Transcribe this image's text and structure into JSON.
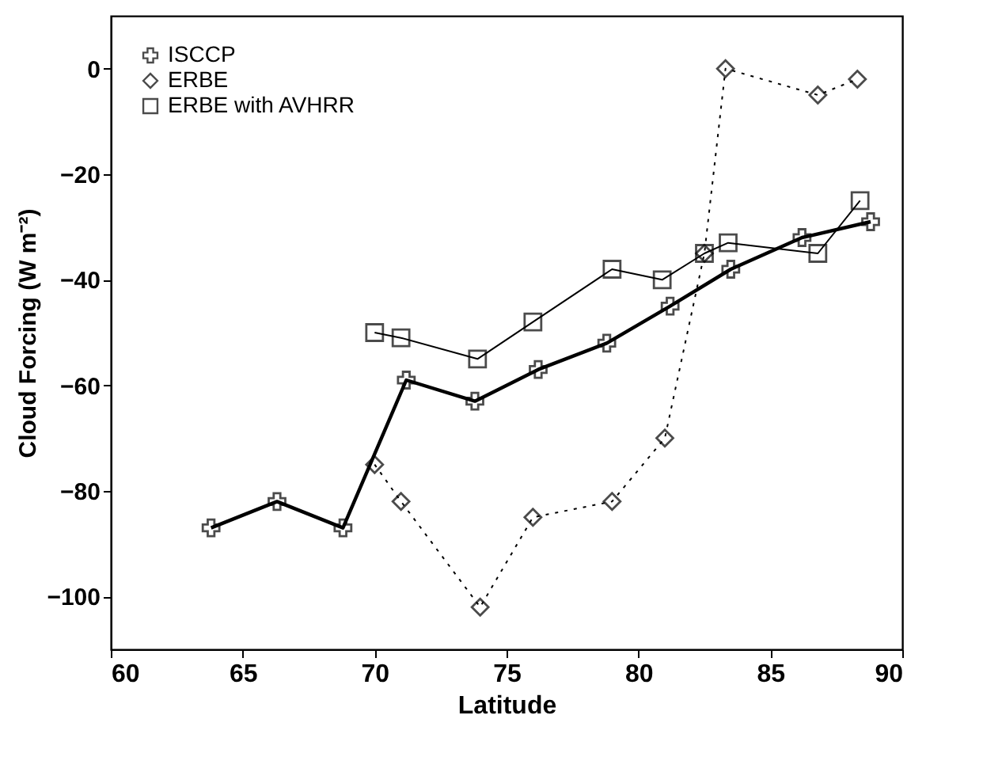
{
  "chart_data": {
    "type": "line",
    "xlabel": "Latitude",
    "ylabel": "Cloud Forcing (W m⁻²)",
    "xlim": [
      60,
      90
    ],
    "xticks": [
      60,
      65,
      70,
      75,
      80,
      85,
      90
    ],
    "ylim": [
      -110,
      10
    ],
    "yticks": [
      -100,
      -80,
      -60,
      -40,
      -20,
      0
    ],
    "grid": false,
    "legend": "top left",
    "series": [
      {
        "name": "ISCCP",
        "color": "#000000",
        "marker": "cross",
        "line_style": "solid",
        "x": [
          63.8,
          66.3,
          68.8,
          71.2,
          73.8,
          76.2,
          78.8,
          81.2,
          83.5,
          86.2,
          88.8
        ],
        "values": [
          -87,
          -82,
          -87,
          -59,
          -63,
          -57,
          -52,
          -45,
          -38,
          -32,
          -29
        ]
      },
      {
        "name": "ERBE",
        "color": "#000000",
        "marker": "diamond",
        "line_style": "dotted",
        "x": [
          70,
          71,
          74,
          76,
          79,
          81,
          82.5,
          83.3,
          86.8,
          88.3
        ],
        "values": [
          -75,
          -82,
          -102,
          -85,
          -82,
          -70,
          -35,
          0,
          -5,
          -2
        ]
      },
      {
        "name": "ERBE with AVHRR",
        "color": "#000000",
        "marker": "square",
        "line_style": "solid",
        "x": [
          70,
          71,
          73.9,
          76,
          79,
          80.9,
          82.5,
          83.4,
          86.8,
          88.4
        ],
        "values": [
          -50,
          -51,
          -55,
          -48,
          -38,
          -40,
          -35,
          -33,
          -35,
          -25
        ]
      }
    ]
  }
}
